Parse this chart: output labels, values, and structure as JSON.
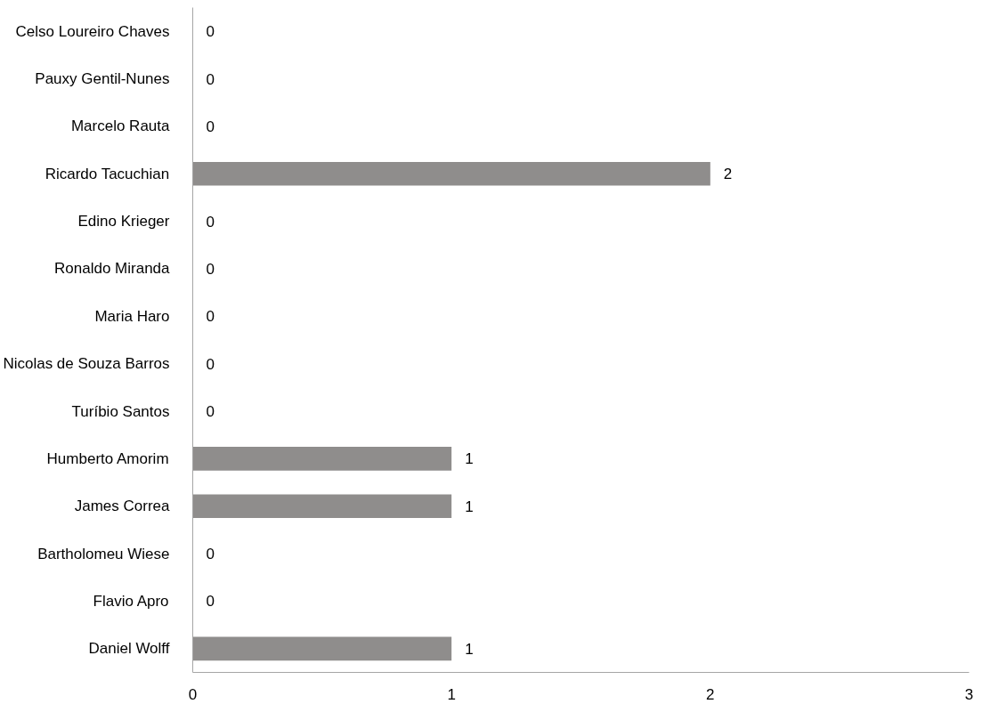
{
  "chart_data": {
    "type": "bar",
    "orientation": "horizontal",
    "categories": [
      "Celso Loureiro Chaves",
      "Pauxy Gentil-Nunes",
      "Marcelo Rauta",
      "Ricardo Tacuchian",
      "Edino Krieger",
      "Ronaldo Miranda",
      "Maria Haro",
      "Nicolas de Souza Barros",
      "Turíbio Santos",
      "Humberto Amorim",
      "James Correa",
      "Bartholomeu Wiese",
      "Flavio Apro",
      "Daniel Wolff"
    ],
    "values": [
      0,
      0,
      0,
      2,
      0,
      0,
      0,
      0,
      0,
      1,
      1,
      0,
      0,
      1
    ],
    "color": "#8f8d8c",
    "xlim": [
      0,
      3
    ],
    "xticks": [
      0,
      1,
      2,
      3
    ],
    "grid": false,
    "data_labels": true
  }
}
